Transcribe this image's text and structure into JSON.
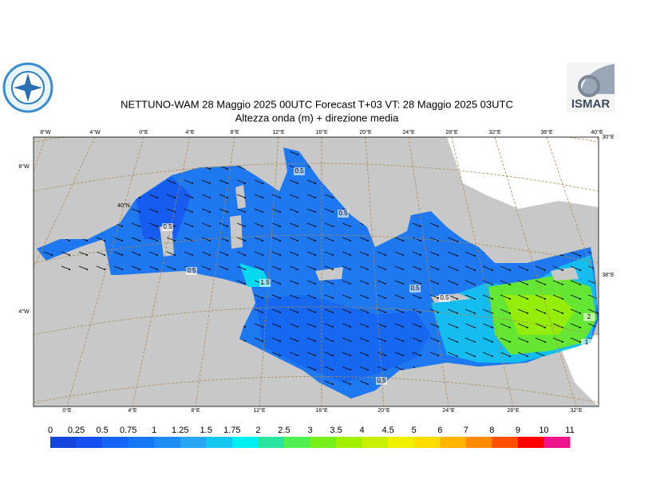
{
  "header": {
    "title": "NETTUNO-WAM  28   Maggio  2025 00UTC Forecast T+03 VT: 28   Maggio  2025 03UTC",
    "subtitle": "Altezza onda (m) + direzione media",
    "logo_right": "ISMAR"
  },
  "map": {
    "top_labels": [
      "8°W",
      "4°W",
      "0°E",
      "4°E",
      "8°E",
      "12°E",
      "16°E",
      "20°E",
      "24°E",
      "28°E",
      "32°E",
      "36°E",
      "40°E"
    ],
    "bottom_labels": [
      "0°E",
      "4°E",
      "8°E",
      "12°E",
      "16°E",
      "20°E",
      "24°E",
      "28°E",
      "32°E"
    ],
    "left_labels": [
      "8°W",
      "4°W"
    ],
    "right_labels": [
      "30°E",
      "38°E"
    ],
    "inner_labels": [
      "40°N"
    ],
    "contour_labels": [
      "0.5",
      "0.5",
      "0.5",
      "0.5",
      "1.5",
      "0.5",
      "0.5",
      "2",
      "1",
      "0.5"
    ]
  },
  "colorbar": {
    "ticks": [
      0,
      0.25,
      0.5,
      0.75,
      1,
      1.25,
      1.5,
      1.75,
      2,
      2.5,
      3,
      3.5,
      4,
      4.5,
      5,
      6,
      7,
      8,
      9,
      10,
      11
    ],
    "colors": [
      "#1446dc",
      "#1450f0",
      "#1464f5",
      "#1478f5",
      "#1e8cf5",
      "#28a5f5",
      "#14c8f0",
      "#00f0f0",
      "#28e6a0",
      "#50f050",
      "#78f01e",
      "#a0f000",
      "#c8f000",
      "#f0f000",
      "#ffdc00",
      "#ffb400",
      "#ff8c00",
      "#ff5000",
      "#ff0000",
      "#f0148c"
    ]
  }
}
